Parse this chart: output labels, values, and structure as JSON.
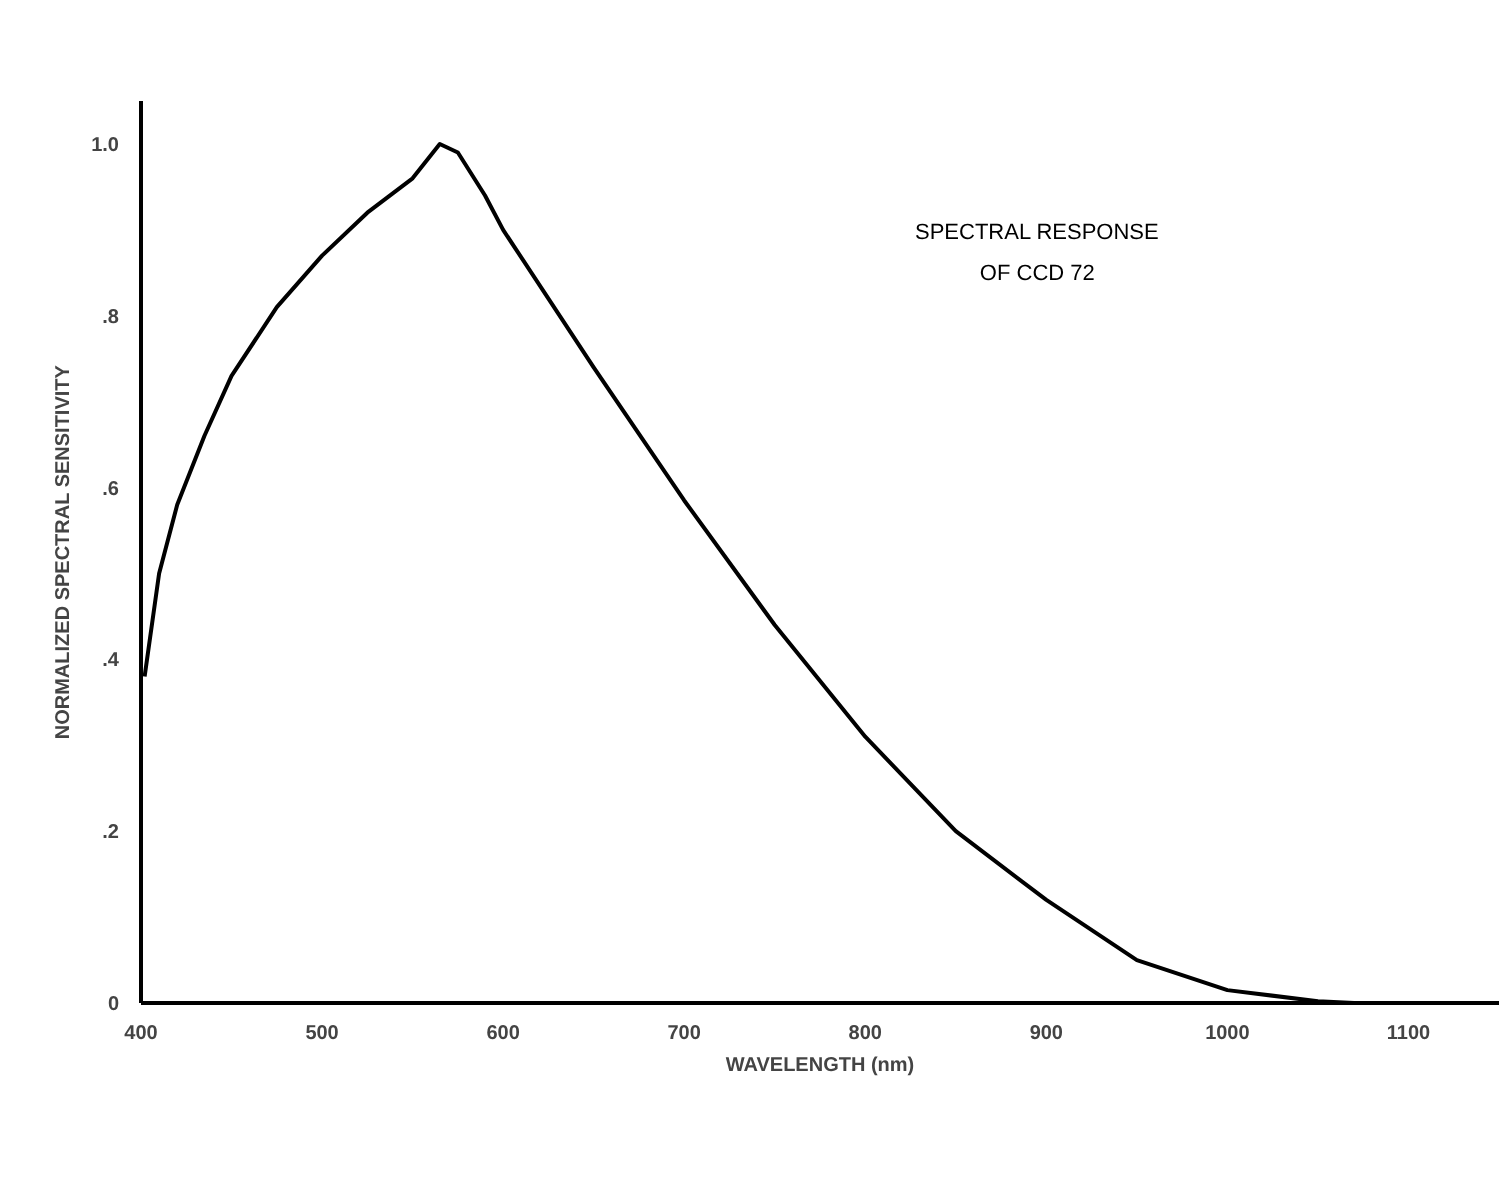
{
  "chart_data": {
    "type": "line",
    "title": "SPECTRAL RESPONSE\nOF CCD 72",
    "xlabel": "WAVELENGTH (nm)",
    "ylabel": "NORMALIZED SPECTRAL SENSITIVITY",
    "x": [
      402,
      410,
      420,
      435,
      450,
      475,
      500,
      525,
      550,
      565,
      575,
      590,
      600,
      650,
      700,
      750,
      800,
      850,
      900,
      950,
      1000,
      1050,
      1070
    ],
    "series": [
      {
        "color": "#000000",
        "values": [
          0.38,
          0.5,
          0.58,
          0.66,
          0.73,
          0.81,
          0.87,
          0.92,
          0.96,
          1.0,
          0.99,
          0.94,
          0.9,
          0.74,
          0.585,
          0.44,
          0.31,
          0.2,
          0.12,
          0.05,
          0.015,
          0.002,
          0
        ]
      }
    ],
    "xlim": [
      400,
      1150
    ],
    "ylim": [
      0,
      1.05
    ],
    "xticks": [
      400,
      500,
      600,
      700,
      800,
      900,
      1000,
      1100
    ],
    "yticks": [
      0,
      {
        "value": 0.2,
        "label": ".2"
      },
      {
        "value": 0.4,
        "label": ".4"
      },
      {
        "value": 0.6,
        "label": ".6"
      },
      {
        "value": 0.8,
        "label": ".8"
      },
      {
        "value": 1.0,
        "label": "1.0"
      }
    ],
    "grid": false
  }
}
